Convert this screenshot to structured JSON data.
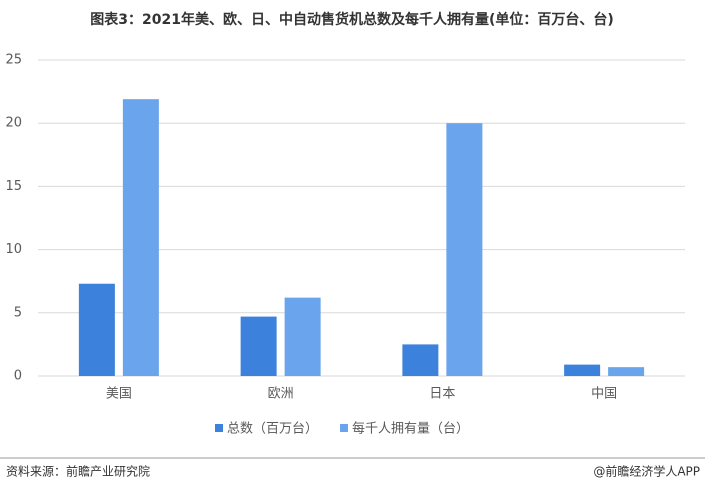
{
  "chart_data": {
    "type": "bar",
    "title": "图表3：2021年美、欧、日、中自动售货机总数及每千人拥有量(单位：百万台、台)",
    "categories": [
      "美国",
      "欧洲",
      "日本",
      "中国"
    ],
    "series": [
      {
        "name": "总数（百万台）",
        "color": "#3c82dc",
        "values": [
          7.3,
          4.7,
          2.5,
          0.9
        ]
      },
      {
        "name": "每千人拥有量（台）",
        "color": "#6aa4ec",
        "values": [
          21.9,
          6.2,
          20,
          0.7
        ]
      }
    ],
    "ylim": [
      0,
      25
    ],
    "yticks": [
      0,
      5,
      10,
      15,
      20,
      25
    ],
    "grid": true,
    "legend": "bottom"
  },
  "footer": {
    "source": "资料来源：前瞻产业研究院",
    "brand": "@前瞻经济学人APP"
  }
}
